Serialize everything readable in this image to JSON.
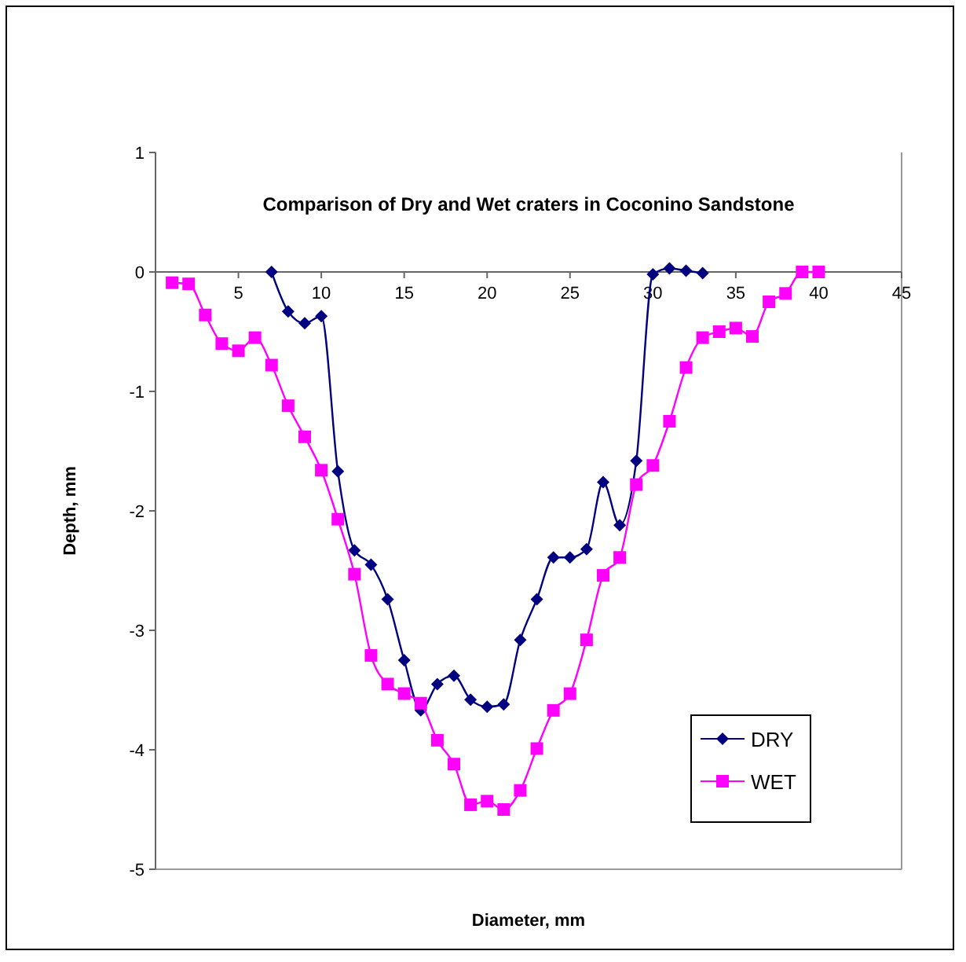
{
  "chart_data": {
    "type": "line",
    "title": "Comparison of Dry and Wet craters in Coconino Sandstone",
    "xlabel": "Diameter, mm",
    "ylabel": "Depth, mm",
    "xlim": [
      0,
      45
    ],
    "xticks": [
      5,
      10,
      15,
      20,
      25,
      30,
      35,
      40,
      45
    ],
    "ylim": [
      -5,
      1
    ],
    "yticks": [
      -5,
      -4,
      -3,
      -2,
      -1,
      0,
      1
    ],
    "grid": false,
    "legend": "bottom right",
    "series": [
      {
        "name": "DRY",
        "color": "#000080",
        "marker": "diamond",
        "x": [
          7,
          8,
          9,
          10,
          11,
          12,
          13,
          14,
          15,
          16,
          17,
          18,
          19,
          20,
          21,
          22,
          23,
          24,
          25,
          26,
          27,
          28,
          29,
          30,
          31,
          32,
          33
        ],
        "values": [
          0,
          -0.33,
          -0.43,
          -0.37,
          -1.67,
          -2.33,
          -2.45,
          -2.74,
          -3.25,
          -3.67,
          -3.45,
          -3.38,
          -3.58,
          -3.64,
          -3.62,
          -3.08,
          -2.74,
          -2.39,
          -2.39,
          -2.32,
          -1.76,
          -2.12,
          -1.58,
          -0.02,
          0.03,
          0.01,
          -0.01
        ]
      },
      {
        "name": "WET",
        "color": "#ff00ff",
        "marker": "square",
        "x": [
          1,
          2,
          3,
          4,
          5,
          6,
          7,
          8,
          9,
          10,
          11,
          12,
          13,
          14,
          15,
          16,
          17,
          18,
          19,
          20,
          21,
          22,
          23,
          24,
          25,
          26,
          27,
          28,
          29,
          30,
          31,
          32,
          33,
          34,
          35,
          36,
          37,
          38,
          39,
          40
        ],
        "values": [
          -0.09,
          -0.1,
          -0.36,
          -0.6,
          -0.66,
          -0.55,
          -0.78,
          -1.12,
          -1.38,
          -1.66,
          -2.07,
          -2.53,
          -3.21,
          -3.45,
          -3.53,
          -3.61,
          -3.92,
          -4.12,
          -4.46,
          -4.43,
          -4.5,
          -4.34,
          -3.99,
          -3.67,
          -3.53,
          -3.08,
          -2.54,
          -2.39,
          -1.78,
          -1.62,
          -1.25,
          -0.8,
          -0.55,
          -0.5,
          -0.47,
          -0.54,
          -0.25,
          -0.18,
          0,
          0
        ]
      }
    ]
  }
}
